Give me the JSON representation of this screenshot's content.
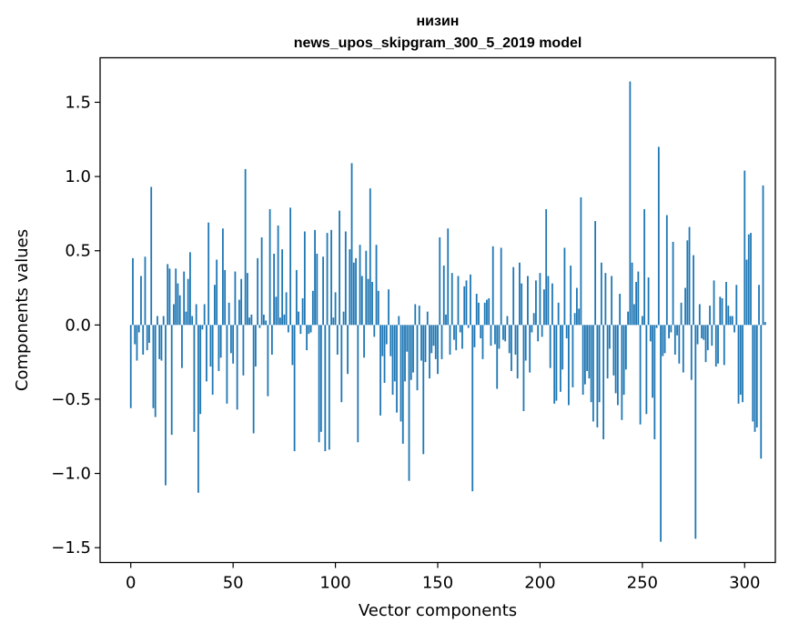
{
  "chart_data": {
    "type": "bar",
    "title_lines": [
      "низин",
      "news_upos_skipgram_300_5_2019 model"
    ],
    "xlabel": "Vector components",
    "ylabel": "Components values",
    "xlim": [
      -15,
      315
    ],
    "ylim": [
      -1.6,
      1.8
    ],
    "xticks": [
      0,
      50,
      100,
      150,
      200,
      250,
      300
    ],
    "xtick_labels": [
      "0",
      "50",
      "100",
      "150",
      "200",
      "250",
      "300"
    ],
    "yticks": [
      -1.5,
      -1.0,
      -0.5,
      0.0,
      0.5,
      1.0,
      1.5
    ],
    "ytick_labels": [
      "−1.5",
      "−1.0",
      "−0.5",
      "0.0",
      "0.5",
      "1.0",
      "1.5"
    ],
    "bar_color": "#1f77b4",
    "grid": false,
    "values": [
      -0.56,
      0.45,
      -0.13,
      -0.24,
      -0.05,
      0.33,
      -0.2,
      0.46,
      -0.17,
      -0.12,
      0.93,
      -0.56,
      -0.62,
      0.06,
      -0.23,
      -0.24,
      0.06,
      -1.08,
      0.41,
      0.38,
      -0.74,
      0.14,
      0.38,
      0.28,
      0.2,
      -0.29,
      0.36,
      0.09,
      0.31,
      0.49,
      0.06,
      -0.72,
      0.14,
      -1.13,
      -0.6,
      -0.03,
      0.14,
      -0.38,
      0.69,
      -0.28,
      -0.47,
      0.27,
      0.44,
      -0.31,
      -0.22,
      0.65,
      0.37,
      -0.53,
      0.15,
      -0.19,
      -0.26,
      0.36,
      -0.57,
      0.17,
      0.31,
      -0.34,
      1.05,
      0.35,
      0.05,
      0.07,
      -0.73,
      -0.28,
      0.45,
      -0.02,
      0.59,
      0.07,
      0.03,
      -0.48,
      0.78,
      -0.2,
      0.48,
      0.19,
      0.67,
      0.05,
      0.51,
      0.07,
      0.22,
      -0.05,
      0.79,
      -0.27,
      -0.85,
      0.37,
      0.09,
      -0.06,
      0.18,
      0.63,
      -0.17,
      -0.06,
      -0.05,
      0.23,
      0.64,
      0.48,
      -0.79,
      -0.72,
      0.46,
      -0.85,
      0.62,
      -0.84,
      0.64,
      0.05,
      0.22,
      -0.2,
      0.77,
      -0.52,
      0.09,
      0.63,
      -0.33,
      0.51,
      1.09,
      0.42,
      0.45,
      -0.79,
      0.54,
      0.33,
      -0.22,
      0.5,
      0.31,
      0.92,
      0.29,
      -0.08,
      0.54,
      0.23,
      -0.61,
      -0.21,
      -0.39,
      -0.13,
      0.24,
      -0.21,
      -0.47,
      -0.38,
      -0.59,
      0.06,
      -0.65,
      -0.8,
      -0.38,
      -0.18,
      -1.05,
      -0.37,
      -0.32,
      0.14,
      -0.44,
      0.13,
      -0.24,
      -0.87,
      -0.25,
      0.09,
      -0.36,
      -0.19,
      -0.14,
      -0.23,
      -0.33,
      0.59,
      -0.23,
      0.4,
      0.07,
      0.65,
      -0.2,
      0.35,
      -0.1,
      -0.17,
      0.33,
      -0.05,
      -0.16,
      0.26,
      0.3,
      -0.02,
      0.34,
      -1.12,
      -0.15,
      0.21,
      0.15,
      -0.09,
      -0.23,
      0.15,
      0.17,
      0.18,
      -0.14,
      0.53,
      -0.13,
      -0.43,
      -0.16,
      0.52,
      -0.1,
      -0.11,
      0.06,
      -0.19,
      -0.31,
      0.39,
      -0.2,
      -0.36,
      0.42,
      0.28,
      -0.58,
      -0.24,
      0.33,
      -0.32,
      -0.05,
      0.08,
      0.3,
      -0.11,
      0.35,
      -0.08,
      0.24,
      0.78,
      0.33,
      -0.29,
      0.28,
      -0.53,
      -0.51,
      0.15,
      -0.45,
      -0.3,
      0.52,
      -0.09,
      -0.54,
      0.4,
      -0.42,
      0.08,
      0.25,
      0.11,
      0.86,
      -0.47,
      -0.4,
      -0.31,
      -0.36,
      -0.52,
      -0.65,
      0.7,
      -0.69,
      -0.52,
      0.42,
      -0.77,
      0.35,
      -0.36,
      -0.16,
      0.33,
      -0.34,
      -0.46,
      -0.54,
      0.21,
      -0.64,
      -0.47,
      -0.3,
      0.09,
      1.64,
      0.42,
      0.14,
      0.29,
      0.36,
      -0.67,
      0.06,
      0.78,
      -0.6,
      0.32,
      -0.11,
      -0.49,
      -0.77,
      -0.02,
      1.2,
      -1.46,
      -0.21,
      -0.19,
      0.74,
      -0.09,
      -0.05,
      0.56,
      -0.2,
      -0.07,
      -0.26,
      0.15,
      -0.32,
      0.25,
      0.57,
      0.66,
      -0.37,
      0.47,
      -1.44,
      -0.13,
      0.14,
      -0.09,
      -0.1,
      -0.25,
      -0.17,
      0.13,
      -0.14,
      0.3,
      -0.28,
      -0.26,
      0.19,
      0.18,
      -0.27,
      0.29,
      0.13,
      0.06,
      0.06,
      -0.05,
      0.27,
      -0.53,
      -0.47,
      -0.52,
      1.04,
      0.44,
      0.61,
      0.62,
      -0.65,
      -0.72,
      -0.69,
      0.27,
      -0.9,
      0.94,
      0.02
    ]
  }
}
